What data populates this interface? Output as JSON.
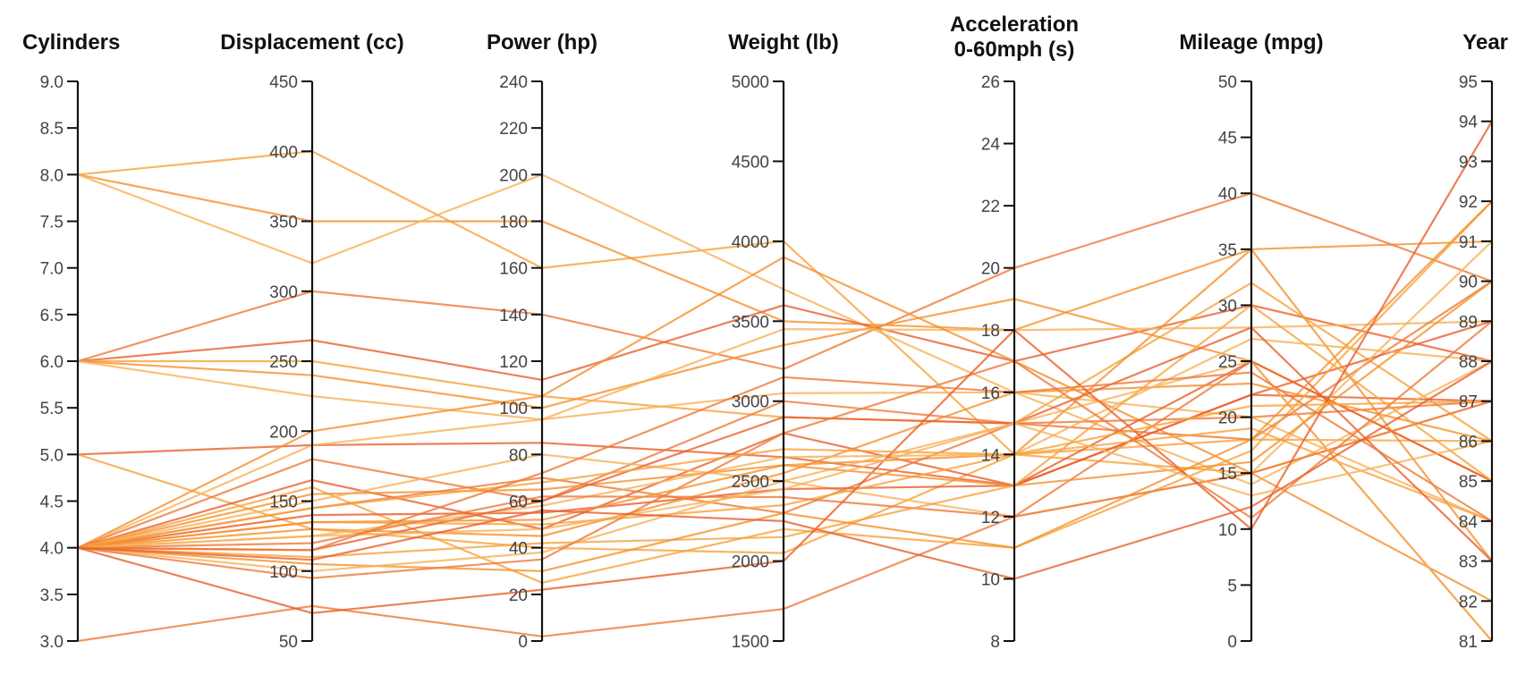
{
  "chart_data": {
    "type": "parallel-coordinates",
    "title": "",
    "line_colors": [
      "#f7a23c",
      "#f5912d",
      "#f8b25a",
      "#ee7a3a",
      "#e8602e"
    ],
    "axes": [
      {
        "key": "cyl",
        "label_lines": [
          "Cylinders"
        ],
        "min": 3,
        "max": 9,
        "ticks": [
          3,
          3.5,
          4,
          4.5,
          5,
          5.5,
          6,
          6.5,
          7,
          7.5,
          8,
          8.5,
          9
        ],
        "tick_labels": [
          "3.0",
          "3.5",
          "4.0",
          "4.5",
          "5.0",
          "5.5",
          "6.0",
          "6.5",
          "7.0",
          "7.5",
          "8.0",
          "8.5",
          "9.0"
        ]
      },
      {
        "key": "disp",
        "label_lines": [
          "Displacement (cc)"
        ],
        "min": 50,
        "max": 450,
        "ticks": [
          50,
          100,
          150,
          200,
          250,
          300,
          350,
          400,
          450
        ],
        "tick_labels": [
          "50",
          "100",
          "150",
          "200",
          "250",
          "300",
          "350",
          "400",
          "450"
        ]
      },
      {
        "key": "hp",
        "label_lines": [
          "Power (hp)"
        ],
        "min": 0,
        "max": 240,
        "ticks": [
          0,
          20,
          40,
          60,
          80,
          100,
          120,
          140,
          160,
          180,
          200,
          220,
          240
        ],
        "tick_labels": [
          "0",
          "20",
          "40",
          "60",
          "80",
          "100",
          "120",
          "140",
          "160",
          "180",
          "200",
          "220",
          "240"
        ]
      },
      {
        "key": "wt",
        "label_lines": [
          "Weight (lb)"
        ],
        "min": 1500,
        "max": 5000,
        "ticks": [
          1500,
          2000,
          2500,
          3000,
          3500,
          4000,
          4500,
          5000
        ],
        "tick_labels": [
          "1500",
          "2000",
          "2500",
          "3000",
          "3500",
          "4000",
          "4500",
          "5000"
        ]
      },
      {
        "key": "acc",
        "label_lines": [
          "Acceleration",
          "0-60mph (s)"
        ],
        "min": 8,
        "max": 26,
        "ticks": [
          8,
          10,
          12,
          14,
          16,
          18,
          20,
          22,
          24,
          26
        ],
        "tick_labels": [
          "8",
          "10",
          "12",
          "14",
          "16",
          "18",
          "20",
          "22",
          "24",
          "26"
        ]
      },
      {
        "key": "mpg",
        "label_lines": [
          "Mileage (mpg)"
        ],
        "min": 0,
        "max": 50,
        "ticks": [
          0,
          5,
          10,
          15,
          20,
          25,
          30,
          35,
          40,
          45,
          50
        ],
        "tick_labels": [
          "0",
          "5",
          "10",
          "15",
          "20",
          "25",
          "30",
          "35",
          "40",
          "45",
          "50"
        ]
      },
      {
        "key": "year",
        "label_lines": [
          "Year"
        ],
        "min": 81,
        "max": 95,
        "ticks": [
          81,
          82,
          83,
          84,
          85,
          86,
          87,
          88,
          89,
          90,
          91,
          92,
          93,
          94,
          95
        ],
        "tick_labels": [
          "81",
          "82",
          "83",
          "84",
          "85",
          "86",
          "87",
          "88",
          "89",
          "90",
          "91",
          "92",
          "93",
          "94",
          "95"
        ]
      }
    ],
    "rows": [
      [
        8,
        400,
        160,
        4000,
        14,
        15,
        87
      ],
      [
        8,
        350,
        180,
        3500,
        18,
        35,
        91
      ],
      [
        8,
        320,
        200,
        3700,
        16,
        20,
        84
      ],
      [
        6,
        300,
        140,
        3200,
        20,
        40,
        90
      ],
      [
        6,
        265,
        112,
        3600,
        17,
        30,
        88
      ],
      [
        6,
        250,
        105,
        2900,
        15,
        32,
        86
      ],
      [
        6,
        240,
        100,
        3350,
        19,
        25,
        85
      ],
      [
        6,
        225,
        95,
        3450,
        18,
        28,
        89
      ],
      [
        3,
        75,
        2,
        1700,
        12,
        25,
        81
      ],
      [
        5,
        190,
        85,
        2650,
        13,
        22,
        87
      ],
      [
        5,
        130,
        40,
        2050,
        14,
        18,
        86
      ],
      [
        4,
        200,
        105,
        3900,
        17,
        15,
        82
      ],
      [
        4,
        190,
        95,
        3050,
        16,
        14,
        88
      ],
      [
        4,
        180,
        60,
        3000,
        15,
        18,
        90
      ],
      [
        4,
        165,
        48,
        2800,
        13,
        22,
        89
      ],
      [
        4,
        160,
        25,
        2200,
        11,
        17,
        92
      ],
      [
        4,
        155,
        65,
        2600,
        14,
        35,
        83
      ],
      [
        4,
        150,
        80,
        2500,
        12,
        15,
        91
      ],
      [
        4,
        145,
        70,
        2300,
        15,
        20,
        87
      ],
      [
        4,
        140,
        55,
        2450,
        13,
        25,
        85
      ],
      [
        4,
        135,
        50,
        2350,
        14,
        19,
        84
      ],
      [
        4,
        130,
        45,
        2550,
        16,
        23,
        86
      ],
      [
        4,
        125,
        58,
        2650,
        14,
        27,
        88
      ],
      [
        4,
        120,
        62,
        2400,
        12,
        15,
        87
      ],
      [
        4,
        115,
        60,
        2900,
        15,
        28,
        83
      ],
      [
        4,
        110,
        42,
        2150,
        13,
        30,
        85
      ],
      [
        4,
        105,
        30,
        2300,
        11,
        18,
        92
      ],
      [
        4,
        100,
        38,
        2500,
        15,
        25,
        81
      ],
      [
        4,
        95,
        35,
        2800,
        17,
        11,
        89
      ],
      [
        4,
        70,
        22,
        2000,
        18,
        10,
        94
      ],
      [
        4,
        145,
        68,
        2700,
        14,
        21,
        87
      ],
      [
        4,
        135,
        52,
        2600,
        13,
        16,
        90
      ],
      [
        4,
        125,
        48,
        2450,
        15,
        13,
        86
      ],
      [
        4,
        115,
        72,
        3150,
        16,
        24,
        84
      ],
      [
        4,
        108,
        56,
        2250,
        10,
        12,
        88
      ]
    ]
  }
}
